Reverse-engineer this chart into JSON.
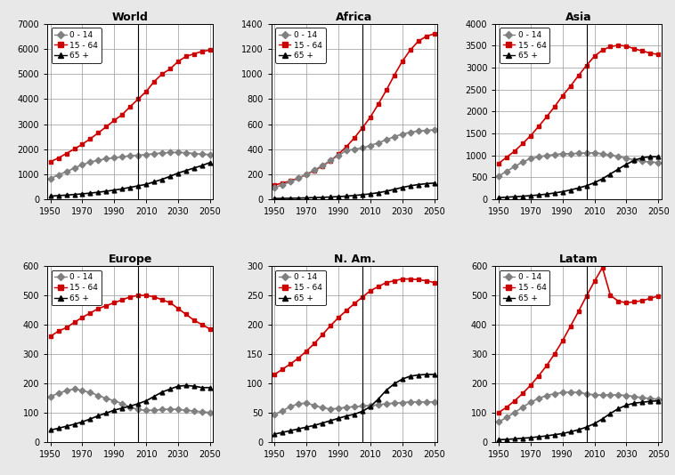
{
  "years": [
    1950,
    1955,
    1960,
    1965,
    1970,
    1975,
    1980,
    1985,
    1990,
    1995,
    2000,
    2005,
    2010,
    2015,
    2020,
    2025,
    2030,
    2035,
    2040,
    2045,
    2050
  ],
  "panels": [
    {
      "title": "World",
      "ylim": [
        0,
        7000
      ],
      "yticks": [
        0,
        1000,
        2000,
        3000,
        4000,
        5000,
        6000,
        7000
      ],
      "age0_14": [
        830,
        980,
        1100,
        1250,
        1380,
        1490,
        1560,
        1620,
        1660,
        1700,
        1740,
        1760,
        1790,
        1820,
        1850,
        1870,
        1870,
        1860,
        1830,
        1800,
        1790
      ],
      "age15_64": [
        1500,
        1650,
        1830,
        2010,
        2200,
        2420,
        2650,
        2900,
        3150,
        3380,
        3700,
        4000,
        4300,
        4700,
        5000,
        5200,
        5500,
        5700,
        5800,
        5900,
        5950
      ],
      "age65p": [
        130,
        150,
        170,
        195,
        220,
        250,
        285,
        325,
        370,
        420,
        480,
        540,
        600,
        700,
        800,
        920,
        1050,
        1150,
        1250,
        1350,
        1470
      ]
    },
    {
      "title": "Africa",
      "ylim": [
        0,
        1400
      ],
      "yticks": [
        0,
        200,
        400,
        600,
        800,
        1000,
        1200,
        1400
      ],
      "age0_14": [
        95,
        115,
        140,
        168,
        200,
        235,
        270,
        310,
        350,
        390,
        400,
        410,
        430,
        450,
        475,
        500,
        520,
        535,
        545,
        550,
        555
      ],
      "age15_64": [
        115,
        130,
        148,
        170,
        198,
        230,
        265,
        308,
        360,
        420,
        490,
        570,
        655,
        760,
        870,
        990,
        1100,
        1190,
        1260,
        1300,
        1320
      ],
      "age65p": [
        7,
        8,
        9,
        10,
        12,
        14,
        16,
        19,
        22,
        26,
        31,
        37,
        44,
        53,
        65,
        80,
        95,
        108,
        118,
        125,
        130
      ]
    },
    {
      "title": "Asia",
      "ylim": [
        0,
        4000
      ],
      "yticks": [
        0,
        500,
        1000,
        1500,
        2000,
        2500,
        3000,
        3500,
        4000
      ],
      "age0_14": [
        530,
        640,
        750,
        850,
        930,
        970,
        1000,
        1020,
        1040,
        1040,
        1050,
        1060,
        1060,
        1040,
        1010,
        980,
        940,
        900,
        870,
        850,
        840
      ],
      "age15_64": [
        820,
        960,
        1100,
        1270,
        1450,
        1660,
        1880,
        2110,
        2360,
        2580,
        2820,
        3050,
        3260,
        3400,
        3480,
        3510,
        3490,
        3430,
        3380,
        3330,
        3300
      ],
      "age65p": [
        40,
        50,
        60,
        72,
        85,
        100,
        120,
        145,
        175,
        215,
        260,
        310,
        380,
        470,
        580,
        690,
        800,
        890,
        950,
        970,
        970
      ]
    },
    {
      "title": "Europe",
      "ylim": [
        0,
        600
      ],
      "yticks": [
        0,
        100,
        200,
        300,
        400,
        500,
        600
      ],
      "age0_14": [
        155,
        165,
        175,
        180,
        175,
        168,
        158,
        148,
        140,
        130,
        118,
        110,
        107,
        108,
        110,
        112,
        110,
        108,
        105,
        102,
        100
      ],
      "age15_64": [
        360,
        378,
        390,
        408,
        425,
        440,
        455,
        465,
        475,
        485,
        495,
        500,
        500,
        495,
        485,
        475,
        455,
        435,
        415,
        400,
        385
      ],
      "age65p": [
        40,
        46,
        53,
        60,
        68,
        78,
        89,
        98,
        108,
        115,
        122,
        130,
        140,
        155,
        170,
        180,
        190,
        192,
        190,
        185,
        185
      ]
    },
    {
      "title": "N. Am.",
      "ylim": [
        0,
        300
      ],
      "yticks": [
        0,
        50,
        100,
        150,
        200,
        250,
        300
      ],
      "age0_14": [
        47,
        53,
        60,
        65,
        66,
        62,
        58,
        56,
        57,
        59,
        60,
        61,
        62,
        63,
        65,
        66,
        67,
        68,
        68,
        68,
        68
      ],
      "age15_64": [
        115,
        124,
        133,
        143,
        155,
        168,
        183,
        198,
        212,
        224,
        236,
        247,
        258,
        265,
        272,
        275,
        278,
        278,
        277,
        275,
        272
      ],
      "age65p": [
        13,
        16,
        19,
        22,
        25,
        28,
        32,
        36,
        40,
        44,
        47,
        52,
        60,
        73,
        88,
        99,
        107,
        112,
        114,
        115,
        115
      ]
    },
    {
      "title": "Latam",
      "ylim": [
        0,
        600
      ],
      "yticks": [
        0,
        100,
        200,
        300,
        400,
        500,
        600
      ],
      "age0_14": [
        68,
        83,
        100,
        118,
        135,
        148,
        158,
        164,
        168,
        170,
        168,
        164,
        160,
        160,
        160,
        160,
        158,
        155,
        150,
        148,
        145
      ],
      "age15_64": [
        100,
        118,
        140,
        165,
        193,
        225,
        260,
        300,
        345,
        395,
        445,
        498,
        548,
        595,
        500,
        480,
        475,
        478,
        482,
        490,
        498
      ],
      "age65p": [
        7,
        8,
        10,
        12,
        14,
        17,
        20,
        24,
        28,
        34,
        41,
        50,
        62,
        78,
        97,
        113,
        125,
        132,
        135,
        138,
        140
      ]
    }
  ],
  "legend_labels": [
    "0 - 14",
    "15 - 64",
    "65 +"
  ],
  "colors": {
    "age0_14": "#808080",
    "age15_64": "#cc0000",
    "age65p": "#000000"
  },
  "markers": {
    "age0_14": "D",
    "age15_64": "s",
    "age65p": "^"
  },
  "vline_year": 2005,
  "bg_color": "#e8e8e8",
  "panel_bg": "#ffffff",
  "xticks": [
    1950,
    1970,
    1990,
    2010,
    2030,
    2050
  ]
}
